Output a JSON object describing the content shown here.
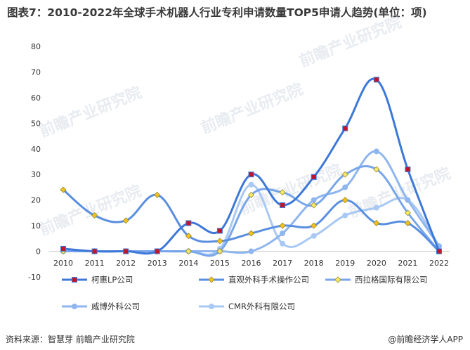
{
  "title": "图表7：2010-2022年全球手术机器人行业专利申请数量TOP5申请人趋势(单位：项)",
  "footer": {
    "source": "资料来源：智慧芽 前瞻产业研究院",
    "brand": "@前瞻经济学人APP"
  },
  "watermark": "前瞻产业研究院",
  "chart_data": {
    "type": "line",
    "title": "图表7：2010-2022年全球手术机器人行业专利申请数量TOP5申请人趋势(单位：项)",
    "xlabel": "",
    "ylabel": "",
    "categories": [
      "2010",
      "2011",
      "2012",
      "2013",
      "2014",
      "2015",
      "2016",
      "2017",
      "2018",
      "2019",
      "2020",
      "2021",
      "2022"
    ],
    "ylim": [
      -10,
      80
    ],
    "yticks": [
      -10,
      0,
      10,
      20,
      30,
      40,
      50,
      60,
      70,
      80
    ],
    "grid": false,
    "legend_position": "bottom",
    "series": [
      {
        "name": "柯惠LP公司",
        "color": "#3d78d8",
        "marker": "square",
        "marker_color": "#c0152a",
        "values": [
          1,
          0,
          0,
          0,
          11,
          8,
          30,
          18,
          29,
          48,
          67,
          32,
          0
        ]
      },
      {
        "name": "直观外科手术操作公司",
        "color": "#5a8fe0",
        "marker": "diamond",
        "marker_color": "#f2c21b",
        "values": [
          24,
          14,
          12,
          22,
          6,
          4,
          7,
          10,
          10,
          20,
          11,
          11,
          0
        ]
      },
      {
        "name": "西拉格国际有限公司",
        "color": "#79a6ea",
        "marker": "diamond",
        "marker_color": "#f4ea6a",
        "values": [
          0,
          0,
          0,
          0,
          0,
          0,
          22,
          23,
          18,
          30,
          32,
          15,
          0
        ]
      },
      {
        "name": "威博外科公司",
        "color": "#8fb6ee",
        "marker": "circle",
        "marker_color": "#8fb6ee",
        "values": [
          0,
          0,
          0,
          0,
          0,
          0,
          0,
          7,
          20,
          25,
          39,
          20,
          2
        ]
      },
      {
        "name": "CMR外科有限公司",
        "color": "#a9c8f3",
        "marker": "circle",
        "marker_color": "#a9c8f3",
        "values": [
          0,
          0,
          0,
          0,
          0,
          1,
          26,
          3,
          6,
          14,
          17,
          20,
          2
        ]
      }
    ]
  }
}
